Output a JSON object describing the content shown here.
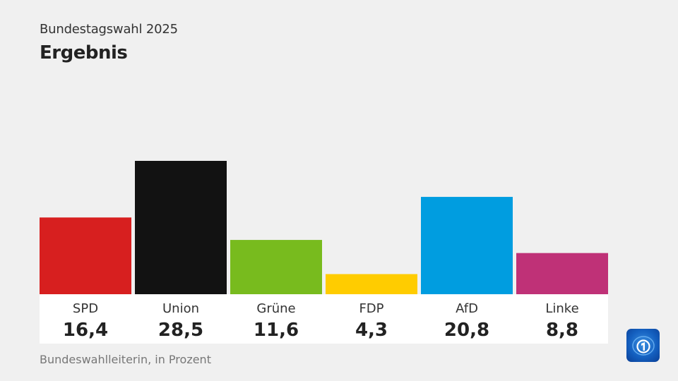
{
  "header": {
    "subtitle": "Bundestagswahl 2025",
    "title": "Ergebnis"
  },
  "footer": {
    "source": "Bundeswahlleiterin, in Prozent"
  },
  "logo": {
    "icon": "tagesschau-globe-logo-icon",
    "color": "#1460c0"
  },
  "chart_data": {
    "type": "bar",
    "title": "Ergebnis",
    "subtitle": "Bundestagswahl 2025",
    "xlabel": "",
    "ylabel": "Prozent",
    "ylim": [
      0,
      28.5
    ],
    "grid": false,
    "categories": [
      "SPD",
      "Union",
      "Grüne",
      "FDP",
      "AfD",
      "Linke"
    ],
    "values": [
      16.4,
      28.5,
      11.6,
      4.3,
      20.8,
      8.8
    ],
    "value_labels": [
      "16,4",
      "28,5",
      "11,6",
      "4,3",
      "20,8",
      "8,8"
    ],
    "colors": [
      "#d71f1f",
      "#121212",
      "#78bb1e",
      "#ffcc00",
      "#009de0",
      "#bf3177"
    ],
    "source": "Bundeswahlleiterin, in Prozent"
  }
}
